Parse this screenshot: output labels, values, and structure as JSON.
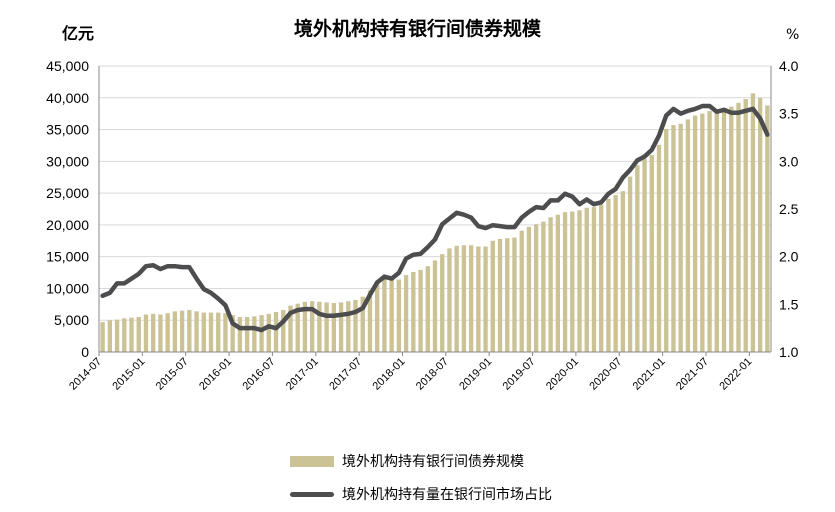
{
  "chart_data": {
    "type": "bar",
    "title": "境外机构持有银行间债券规模",
    "y_unit_left": "亿元",
    "y_unit_right": "%",
    "ylim_left": [
      0,
      45000
    ],
    "ylim_right": [
      1.0,
      4.0
    ],
    "yticks_left": [
      "0",
      "5,000",
      "10,000",
      "15,000",
      "20,000",
      "25,000",
      "30,000",
      "35,000",
      "40,000",
      "45,000"
    ],
    "yticks_right": [
      "1.0",
      "1.5",
      "2.0",
      "2.5",
      "3.0",
      "3.5",
      "4.0"
    ],
    "xtick_labels": [
      "2014-07",
      "2015-01",
      "2015-07",
      "2016-01",
      "2016-07",
      "2017-01",
      "2017-07",
      "2018-01",
      "2018-07",
      "2019-01",
      "2019-07",
      "2020-01",
      "2020-07",
      "2021-01",
      "2021-07",
      "2022-01"
    ],
    "grid": true,
    "legend_position": "bottom",
    "categories": [
      "2014-07",
      "2014-08",
      "2014-09",
      "2014-10",
      "2014-11",
      "2014-12",
      "2015-01",
      "2015-02",
      "2015-03",
      "2015-04",
      "2015-05",
      "2015-06",
      "2015-07",
      "2015-08",
      "2015-09",
      "2015-10",
      "2015-11",
      "2015-12",
      "2016-01",
      "2016-02",
      "2016-03",
      "2016-04",
      "2016-05",
      "2016-06",
      "2016-07",
      "2016-08",
      "2016-09",
      "2016-10",
      "2016-11",
      "2016-12",
      "2017-01",
      "2017-02",
      "2017-03",
      "2017-04",
      "2017-05",
      "2017-06",
      "2017-07",
      "2017-08",
      "2017-09",
      "2017-10",
      "2017-11",
      "2017-12",
      "2018-01",
      "2018-02",
      "2018-03",
      "2018-04",
      "2018-05",
      "2018-06",
      "2018-07",
      "2018-08",
      "2018-09",
      "2018-10",
      "2018-11",
      "2018-12",
      "2019-01",
      "2019-02",
      "2019-03",
      "2019-04",
      "2019-05",
      "2019-06",
      "2019-07",
      "2019-08",
      "2019-09",
      "2019-10",
      "2019-11",
      "2019-12",
      "2020-01",
      "2020-02",
      "2020-03",
      "2020-04",
      "2020-05",
      "2020-06",
      "2020-07",
      "2020-08",
      "2020-09",
      "2020-10",
      "2020-11",
      "2020-12",
      "2021-01",
      "2021-02",
      "2021-03",
      "2021-04",
      "2021-05",
      "2021-06",
      "2021-07",
      "2021-08",
      "2021-09",
      "2021-10",
      "2021-11",
      "2021-12",
      "2022-01",
      "2022-02",
      "2022-03"
    ],
    "series": [
      {
        "name": "境外机构持有银行间债券规模",
        "axis": "left",
        "kind": "bar",
        "color": "#cbc295",
        "values": [
          4700,
          5000,
          5100,
          5300,
          5400,
          5500,
          5900,
          6000,
          5900,
          6100,
          6400,
          6500,
          6600,
          6400,
          6200,
          6200,
          6200,
          6100,
          5800,
          5500,
          5500,
          5600,
          5800,
          6000,
          6300,
          6600,
          7300,
          7600,
          7900,
          8000,
          7900,
          7800,
          7700,
          7800,
          8000,
          8200,
          8700,
          9700,
          11000,
          11500,
          11600,
          11400,
          12100,
          12600,
          12900,
          13500,
          14400,
          15400,
          16300,
          16700,
          16800,
          16800,
          16600,
          16600,
          17500,
          17800,
          17900,
          18000,
          19100,
          19700,
          20100,
          20500,
          21200,
          21600,
          22000,
          22100,
          22300,
          22700,
          22800,
          23200,
          24100,
          24700,
          25300,
          27600,
          29400,
          30400,
          31000,
          32600,
          35100,
          35700,
          35900,
          36600,
          37200,
          37500,
          37900,
          38200,
          38400,
          38600,
          39200,
          39800,
          40700,
          40000,
          38800
        ]
      },
      {
        "name": "境外机构持有量在银行间市场占比",
        "axis": "right",
        "kind": "line",
        "color": "#4d4d4f",
        "values": [
          1.59,
          1.62,
          1.72,
          1.72,
          1.77,
          1.82,
          1.9,
          1.91,
          1.87,
          1.9,
          1.9,
          1.89,
          1.89,
          1.77,
          1.66,
          1.62,
          1.56,
          1.49,
          1.3,
          1.25,
          1.25,
          1.25,
          1.23,
          1.27,
          1.25,
          1.32,
          1.41,
          1.44,
          1.45,
          1.45,
          1.4,
          1.38,
          1.38,
          1.39,
          1.4,
          1.42,
          1.46,
          1.6,
          1.73,
          1.79,
          1.77,
          1.83,
          1.98,
          2.02,
          2.03,
          2.1,
          2.18,
          2.34,
          2.4,
          2.46,
          2.44,
          2.41,
          2.32,
          2.3,
          2.33,
          2.32,
          2.31,
          2.31,
          2.41,
          2.47,
          2.52,
          2.51,
          2.59,
          2.59,
          2.66,
          2.63,
          2.55,
          2.6,
          2.55,
          2.57,
          2.66,
          2.71,
          2.83,
          2.91,
          3.01,
          3.05,
          3.12,
          3.27,
          3.48,
          3.55,
          3.5,
          3.53,
          3.55,
          3.58,
          3.58,
          3.52,
          3.54,
          3.51,
          3.51,
          3.53,
          3.55,
          3.45,
          3.28
        ]
      }
    ]
  }
}
